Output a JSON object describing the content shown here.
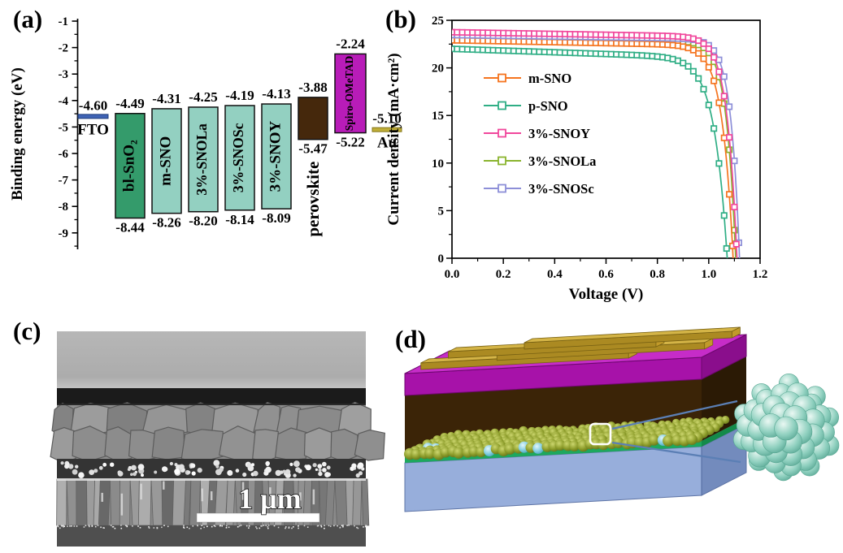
{
  "panel_labels": {
    "a": "(a)",
    "b": "(b)",
    "c": "(c)",
    "d": "(d)"
  },
  "chart_data": [
    {
      "id": "panel-a-energy-level-diagram",
      "type": "bar",
      "subtype": "floating-energy-levels",
      "ylabel": "Binding energy (eV)",
      "ylim": [
        -9.6,
        -1
      ],
      "yticks": [
        -1,
        -2,
        -3,
        -4,
        -5,
        -6,
        -7,
        -8,
        -9
      ],
      "levels": [
        {
          "label": "FTO",
          "kind": "line",
          "level": -4.6,
          "annotation": "-4.60",
          "color": "#3f63b5"
        },
        {
          "label": "bl-SnO₂",
          "kind": "bar",
          "top": -4.49,
          "bottom": -8.44,
          "top_label": "-4.49",
          "bottom_label": "-8.44",
          "color": "#349b6b"
        },
        {
          "label": "m-SNO",
          "kind": "bar",
          "top": -4.31,
          "bottom": -8.26,
          "top_label": "-4.31",
          "bottom_label": "-8.26",
          "color": "#93d0c1"
        },
        {
          "label": "3%-SNOLa",
          "kind": "bar",
          "top": -4.25,
          "bottom": -8.2,
          "top_label": "-4.25",
          "bottom_label": "-8.20",
          "color": "#93d0c1"
        },
        {
          "label": "3%-SNOSc",
          "kind": "bar",
          "top": -4.19,
          "bottom": -8.14,
          "top_label": "-4.19",
          "bottom_label": "-8.14",
          "color": "#93d0c1"
        },
        {
          "label": "3%-SNOY",
          "kind": "bar",
          "top": -4.13,
          "bottom": -8.09,
          "top_label": "-4.13",
          "bottom_label": "-8.09",
          "color": "#93d0c1"
        },
        {
          "label": "perovskite",
          "kind": "bar",
          "top": -3.88,
          "bottom": -5.47,
          "top_label": "-3.88",
          "bottom_label": "-5.47",
          "color": "#45280c",
          "label_position": "below"
        },
        {
          "label": "Spiro-OMeTAD",
          "kind": "bar",
          "top": -2.24,
          "bottom": -5.22,
          "top_label": "-2.24",
          "bottom_label": "-5.22",
          "color": "#b81cb8"
        },
        {
          "label": "Au",
          "kind": "line",
          "level": -5.1,
          "annotation": "-5.10",
          "color": "#bfae38"
        }
      ]
    },
    {
      "id": "panel-b-jv-curves",
      "type": "line",
      "xlabel": "Voltage (V)",
      "ylabel": "Current density (mA·cm²)",
      "xlim": [
        0,
        1.2
      ],
      "ylim": [
        0,
        25
      ],
      "xtick_labels": [
        "0.0",
        "0.2",
        "0.4",
        "0.6",
        "0.8",
        "1.0",
        "1.2"
      ],
      "yticks": [
        0,
        5,
        10,
        15,
        20,
        25
      ],
      "legend_position": "upper-left",
      "marker": "open-square",
      "series": [
        {
          "name": "m-SNO",
          "color": "#f5741f",
          "jsc_mA_cm2": 22.9,
          "voc_V": 1.095,
          "knee": 0.042,
          "plateau_slope": 0.5
        },
        {
          "name": "p-SNO",
          "color": "#2fae85",
          "jsc_mA_cm2": 22.0,
          "voc_V": 1.072,
          "knee": 0.05,
          "plateau_slope": 0.9
        },
        {
          "name": "3%-SNOY",
          "color": "#f1479c",
          "jsc_mA_cm2": 23.75,
          "voc_V": 1.11,
          "knee": 0.038,
          "plateau_slope": 0.45
        },
        {
          "name": "3%-SNOLa",
          "color": "#8ab42e",
          "jsc_mA_cm2": 23.25,
          "voc_V": 1.105,
          "knee": 0.036,
          "plateau_slope": 0.45
        },
        {
          "name": "3%-SNOSc",
          "color": "#8d8fd8",
          "jsc_mA_cm2": 23.45,
          "voc_V": 1.12,
          "knee": 0.034,
          "plateau_slope": 0.4
        }
      ],
      "draw_order": [
        3,
        0,
        1,
        4,
        2
      ]
    }
  ],
  "panel_c": {
    "kind": "sem-cross-section",
    "scale_bar_label": "1 μm"
  },
  "panel_d": {
    "kind": "device-3d-schematic-with-nanoparticle-inset"
  }
}
